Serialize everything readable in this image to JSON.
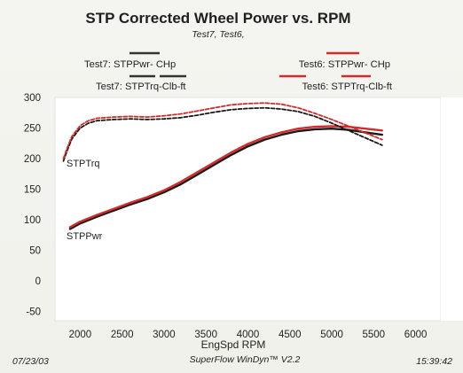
{
  "chart_data": {
    "type": "line",
    "title": "STP Corrected Wheel Power vs. RPM",
    "subtitle": "Test7, Test6,",
    "xlabel": "EngSpd  RPM",
    "ylabel": "",
    "xlim": [
      1700,
      6300
    ],
    "ylim": [
      -65,
      300
    ],
    "x_ticks": [
      {
        "label": "2000"
      },
      {
        "label": "2500"
      },
      {
        "label": "3000"
      },
      {
        "label": "3500"
      },
      {
        "label": "4000"
      },
      {
        "label": "4500"
      },
      {
        "label": "5000"
      },
      {
        "label": "5500"
      },
      {
        "label": "6000"
      }
    ],
    "y_ticks": [
      {
        "label": "300"
      },
      {
        "label": "250"
      },
      {
        "label": "200"
      },
      {
        "label": "150"
      },
      {
        "label": "100"
      },
      {
        "label": "50"
      },
      {
        "label": "0"
      },
      {
        "label": "-50"
      }
    ],
    "legend": [
      {
        "label": "Test7: STPPwr- CHp",
        "color": "#333333",
        "dash": "solid"
      },
      {
        "label": "Test7: STPTrq-Clb-ft",
        "color": "#333333",
        "dash": "dashed"
      },
      {
        "label": "Test6: STPPwr- CHp",
        "color": "#d42a2a",
        "dash": "solid"
      },
      {
        "label": "Test6: STPTrq-Clb-ft",
        "color": "#d42a2a",
        "dash": "dashed"
      }
    ],
    "curve_labels": [
      {
        "label": "STPTrq"
      },
      {
        "label": "STPPwr"
      }
    ],
    "series": [
      {
        "name": "Test7: STPPwr- CHp",
        "color": "#1a1a1a",
        "dash": "solid",
        "x": [
          1880,
          2000,
          2200,
          2400,
          2600,
          2800,
          3000,
          3200,
          3400,
          3600,
          3800,
          4000,
          4200,
          4400,
          4600,
          4800,
          5000,
          5200,
          5400,
          5600
        ],
        "y": [
          85,
          94,
          105,
          115,
          125,
          134,
          145,
          158,
          174,
          190,
          206,
          220,
          231,
          239,
          245,
          248,
          249,
          247,
          243,
          239
        ]
      },
      {
        "name": "Test6: STPPwr- CHp",
        "color": "#d42a2a",
        "dash": "solid",
        "x": [
          1880,
          2000,
          2200,
          2400,
          2600,
          2800,
          3000,
          3200,
          3400,
          3600,
          3800,
          4000,
          4200,
          4400,
          4600,
          4800,
          5000,
          5200,
          5400,
          5600
        ],
        "y": [
          88,
          97,
          108,
          118,
          128,
          137,
          148,
          162,
          178,
          194,
          210,
          224,
          235,
          243,
          249,
          252,
          253,
          252,
          249,
          246
        ]
      },
      {
        "name": "Test7: STPTrq-Clb-ft",
        "color": "#1a1a1a",
        "dash": "dashed",
        "x": [
          1800,
          1850,
          1900,
          2000,
          2100,
          2200,
          2400,
          2600,
          2800,
          3000,
          3200,
          3400,
          3600,
          3800,
          4000,
          4200,
          4400,
          4600,
          4800,
          5000,
          5200,
          5400,
          5600
        ],
        "y": [
          196,
          215,
          232,
          250,
          258,
          262,
          264,
          265,
          264,
          265,
          267,
          271,
          276,
          280,
          282,
          283,
          281,
          277,
          269,
          258,
          246,
          234,
          222
        ]
      },
      {
        "name": "Test6: STPTrq-Clb-ft",
        "color": "#d42a2a",
        "dash": "dashed",
        "x": [
          1800,
          1850,
          1900,
          2000,
          2100,
          2200,
          2400,
          2600,
          2800,
          3000,
          3200,
          3400,
          3600,
          3800,
          4000,
          4200,
          4400,
          4600,
          4800,
          5000,
          5200,
          5400,
          5600
        ],
        "y": [
          200,
          219,
          236,
          254,
          262,
          266,
          268,
          269,
          268,
          270,
          273,
          278,
          283,
          288,
          290,
          291,
          289,
          283,
          274,
          264,
          253,
          242,
          231
        ]
      }
    ]
  },
  "footer": {
    "date": "07/23/03",
    "software": "SuperFlow WinDyn™ V2.2",
    "time": "15:39:42"
  }
}
